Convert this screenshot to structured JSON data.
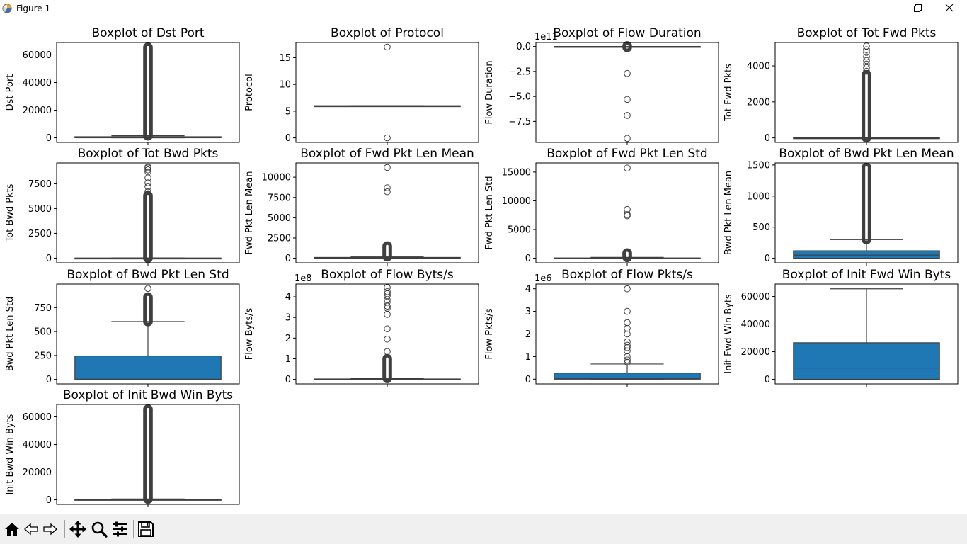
{
  "window": {
    "title": "Figure 1"
  },
  "toolbar": {
    "buttons": [
      {
        "name": "home-button",
        "icon": "home-icon"
      },
      {
        "name": "back-button",
        "icon": "back-arrow-icon"
      },
      {
        "name": "forward-button",
        "icon": "forward-arrow-icon"
      },
      {
        "name": "pan-button",
        "icon": "pan-icon"
      },
      {
        "name": "zoom-button",
        "icon": "zoom-icon"
      },
      {
        "name": "configure-subplots-button",
        "icon": "sliders-icon"
      },
      {
        "name": "save-button",
        "icon": "save-icon"
      }
    ]
  },
  "colors": {
    "box_fill": "#1f77b4",
    "box_line": "#3f3f3f",
    "text": "#000000"
  },
  "chart_data": [
    {
      "type": "boxplot",
      "title": "Boxplot of Dst Port",
      "ylabel": "Dst Port",
      "ylim": [
        -3300,
        69000
      ],
      "yticks": [
        0,
        20000,
        40000,
        60000
      ],
      "ytick_labels": [
        "0",
        "20000",
        "40000",
        "60000"
      ],
      "multiplier": "",
      "whisker_low": 0,
      "q1": 50,
      "median": 200,
      "q3": 800,
      "whisker_high": 1500,
      "outlier_band": [
        1500,
        65500
      ],
      "outliers": []
    },
    {
      "type": "boxplot",
      "title": "Boxplot of Protocol",
      "ylabel": "Protocol",
      "ylim": [
        -0.85,
        17.85
      ],
      "yticks": [
        0,
        5,
        10,
        15
      ],
      "ytick_labels": [
        "0",
        "5",
        "10",
        "15"
      ],
      "multiplier": "",
      "whisker_low": 6,
      "q1": 6,
      "median": 6,
      "q3": 6,
      "whisker_high": 6,
      "outlier_band": null,
      "outliers": [
        0,
        17
      ]
    },
    {
      "type": "boxplot",
      "title": "Boxplot of Flow Duration",
      "ylabel": "Flow Duration",
      "ylim": [
        -9.6,
        0.4
      ],
      "yticks": [
        0,
        -2.5,
        -5.0,
        -7.5
      ],
      "ytick_labels": [
        "0.0",
        "−2.5",
        "−5.0",
        "−7.5"
      ],
      "multiplier": "1e11",
      "whisker_low": 0,
      "q1": 0,
      "median": 0,
      "q3": 0,
      "whisker_high": 0,
      "outlier_band": [
        -0.08,
        0.05
      ],
      "outliers": [
        -2.7,
        -5.3,
        -6.9,
        -9.2
      ]
    },
    {
      "type": "boxplot",
      "title": "Boxplot of Tot Fwd Pkts",
      "ylabel": "Tot Fwd Pkts",
      "ylim": [
        -250,
        5300
      ],
      "yticks": [
        0,
        2000,
        4000
      ],
      "ytick_labels": [
        "0",
        "2000",
        "4000"
      ],
      "multiplier": "",
      "whisker_low": 0,
      "q1": 0,
      "median": 2,
      "q3": 5,
      "whisker_high": 10,
      "outlier_band": [
        10,
        3500
      ],
      "outliers": [
        3700,
        3900,
        4100,
        4300,
        4500,
        4750,
        4900,
        5100
      ]
    },
    {
      "type": "boxplot",
      "title": "Boxplot of Tot Bwd Pkts",
      "ylabel": "Tot Bwd Pkts",
      "ylim": [
        -470,
        9600
      ],
      "yticks": [
        0,
        2500,
        5000,
        7500
      ],
      "ytick_labels": [
        "0",
        "2500",
        "5000",
        "7500"
      ],
      "multiplier": "",
      "whisker_low": 0,
      "q1": 0,
      "median": 1,
      "q3": 5,
      "whisker_high": 10,
      "outlier_band": [
        10,
        6300
      ],
      "outliers": [
        6700,
        7200,
        7600,
        8100,
        8700,
        8900,
        9100,
        9200
      ]
    },
    {
      "type": "boxplot",
      "title": "Boxplot of Fwd Pkt Len Mean",
      "ylabel": "Fwd Pkt Len Mean",
      "ylim": [
        -560,
        11760
      ],
      "yticks": [
        0,
        2500,
        5000,
        7500,
        10000
      ],
      "ytick_labels": [
        "0",
        "2500",
        "5000",
        "7500",
        "10000"
      ],
      "multiplier": "",
      "whisker_low": 0,
      "q1": 0,
      "median": 30,
      "q3": 100,
      "whisker_high": 200,
      "outlier_band": [
        200,
        1500
      ],
      "outliers": [
        8200,
        8700,
        11200
      ]
    },
    {
      "type": "boxplot",
      "title": "Boxplot of Fwd Pkt Len Std",
      "ylabel": "Fwd Pkt Len Std",
      "ylim": [
        -790,
        16590
      ],
      "yticks": [
        0,
        5000,
        10000,
        15000
      ],
      "ytick_labels": [
        "0",
        "5000",
        "10000",
        "15000"
      ],
      "multiplier": "",
      "whisker_low": 0,
      "q1": 0,
      "median": 10,
      "q3": 50,
      "whisker_high": 150,
      "outlier_band": [
        150,
        900
      ],
      "outliers": [
        7400,
        7600,
        8500,
        15700
      ]
    },
    {
      "type": "boxplot",
      "title": "Boxplot of Bwd Pkt Len Mean",
      "ylabel": "Bwd Pkt Len Mean",
      "ylim": [
        -73,
        1533
      ],
      "yticks": [
        0,
        500,
        1000,
        1500
      ],
      "ytick_labels": [
        "0",
        "500",
        "1000",
        "1500"
      ],
      "multiplier": "",
      "whisker_low": 0,
      "q1": 0,
      "median": 50,
      "q3": 120,
      "whisker_high": 300,
      "outlier_band": [
        300,
        1460
      ],
      "outliers": []
    },
    {
      "type": "boxplot",
      "title": "Boxplot of Bwd Pkt Len Std",
      "ylabel": "Bwd Pkt Len Std",
      "ylim": [
        -47,
        997
      ],
      "yticks": [
        0,
        250,
        500,
        750
      ],
      "ytick_labels": [
        "0",
        "250",
        "500",
        "750"
      ],
      "multiplier": "",
      "whisker_low": 0,
      "q1": 0,
      "median": 2,
      "q3": 245,
      "whisker_high": 605,
      "outlier_band": [
        605,
        860
      ],
      "outliers": [
        950
      ]
    },
    {
      "type": "boxplot",
      "title": "Boxplot of Flow Byts/s",
      "ylabel": "Flow Byts/s",
      "ylim": [
        -0.22,
        4.62
      ],
      "yticks": [
        0,
        1,
        2,
        3,
        4
      ],
      "ytick_labels": [
        "0",
        "1",
        "2",
        "3",
        "4"
      ],
      "multiplier": "1e8",
      "whisker_low": 0,
      "q1": 0,
      "median": 0,
      "q3": 0.02,
      "whisker_high": 0.05,
      "outlier_band": [
        0.05,
        1.0
      ],
      "outliers": [
        1.35,
        1.95,
        2.45,
        3.15,
        3.45,
        3.55,
        3.75,
        3.85,
        4.05,
        4.15,
        4.25,
        4.45
      ]
    },
    {
      "type": "boxplot",
      "title": "Boxplot of Flow Pkts/s",
      "ylabel": "Flow Pkts/s",
      "ylim": [
        -0.21,
        4.21
      ],
      "yticks": [
        0,
        1,
        2,
        3,
        4
      ],
      "ytick_labels": [
        "0",
        "1",
        "2",
        "3",
        "4"
      ],
      "multiplier": "1e6",
      "whisker_low": 0,
      "q1": 0,
      "median": 0.02,
      "q3": 0.27,
      "whisker_high": 0.67,
      "outlier_band": null,
      "outliers": [
        0.75,
        0.85,
        1.0,
        1.25,
        1.4,
        1.5,
        1.65,
        2.0,
        2.25,
        2.5,
        3.0,
        4.0
      ]
    },
    {
      "type": "boxplot",
      "title": "Boxplot of Init Fwd Win Byts",
      "ylabel": "Init Fwd Win Byts",
      "ylim": [
        -3300,
        69000
      ],
      "yticks": [
        0,
        20000,
        40000,
        60000
      ],
      "ytick_labels": [
        "0",
        "20000",
        "40000",
        "60000"
      ],
      "multiplier": "",
      "whisker_low": 0,
      "q1": 0,
      "median": 8200,
      "q3": 26500,
      "whisker_high": 65535,
      "outlier_band": null,
      "outliers": []
    },
    {
      "type": "boxplot",
      "title": "Boxplot of Init Bwd Win Byts",
      "ylabel": "Init Bwd Win Byts",
      "ylim": [
        -3300,
        69000
      ],
      "yticks": [
        0,
        20000,
        40000,
        60000
      ],
      "ytick_labels": [
        "0",
        "20000",
        "40000",
        "60000"
      ],
      "multiplier": "",
      "whisker_low": 0,
      "q1": 0,
      "median": 50,
      "q3": 250,
      "whisker_high": 600,
      "outlier_band": [
        600,
        65500
      ],
      "outliers": []
    }
  ]
}
